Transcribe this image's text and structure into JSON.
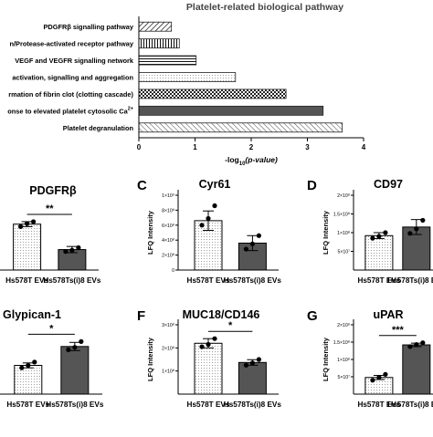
{
  "chart_data": [
    {
      "type": "bar",
      "orientation": "horizontal",
      "title": "Platelet-related biological pathway",
      "xlabel_parts": [
        "-log",
        "10",
        "(p-value)"
      ],
      "xlim": [
        0,
        4
      ],
      "ticks": [
        "0",
        "1",
        "2",
        "3",
        "4"
      ],
      "categories": [
        "PDGFRβ signalling pathway",
        "n/Protease-activated receptor pathway",
        "VEGF and VEGFR signalling network",
        "activation, signalling and aggregation",
        "rmation of fibrin clot (clotting cascade)",
        "onse to elevated platelet cytosolic Ca",
        "Platelet degranulation"
      ],
      "ca_superscript": "2+",
      "values": [
        0.58,
        0.72,
        1.02,
        1.72,
        2.62,
        3.28,
        3.62
      ]
    },
    {
      "type": "bar",
      "panel_letter": "",
      "title": "PDGFRβ",
      "ylabel": "",
      "ytick_labels": [],
      "categories": [
        "Hs578T EVs",
        "Hs578Ts(i)8 EVs"
      ],
      "means": [
        74,
        33
      ],
      "errors": [
        4,
        5
      ],
      "points": [
        [
          70,
          75,
          78
        ],
        [
          30,
          32,
          36
        ]
      ],
      "ylim": [
        0,
        100
      ],
      "significance": "**"
    },
    {
      "type": "bar",
      "panel_letter": "C",
      "title": "Cyr61",
      "ylabel": "LFQ Intensity",
      "ytick_labels": [
        "1×10⁹",
        "8×10⁸",
        "6×10⁸",
        "4×10⁸",
        "2×10⁸",
        "0"
      ],
      "yticks": [
        1000000000,
        800000000,
        600000000,
        400000000,
        200000000,
        0
      ],
      "categories": [
        "Hs578T EVs",
        "Hs578Ts(i)8 EVs"
      ],
      "means": [
        660000000,
        360000000
      ],
      "errors": [
        130000000,
        100000000
      ],
      "points": [
        [
          600000000,
          690000000,
          860000000
        ],
        [
          280000000,
          350000000,
          460000000
        ]
      ],
      "ylim": [
        0,
        1000000000
      ],
      "significance": ""
    },
    {
      "type": "bar",
      "panel_letter": "D",
      "title": "CD97",
      "ylabel": "LFQ Intensity",
      "ytick_labels": [
        "2×10⁸",
        "1.5×10⁸",
        "1×10⁸",
        "5×10⁷"
      ],
      "yticks": [
        200000000,
        150000000,
        100000000,
        50000000
      ],
      "categories": [
        "Hs578T EVs",
        "Hs578Ts(i)8 EVs"
      ],
      "means": [
        92000000,
        115000000
      ],
      "errors": [
        8000000,
        20000000
      ],
      "points": [
        [
          85000000,
          90000000,
          100000000
        ],
        [
          98000000,
          110000000,
          133000000
        ]
      ],
      "ylim": [
        0,
        200000000
      ],
      "significance": ""
    },
    {
      "type": "bar",
      "panel_letter": "",
      "title": "Glypican-1",
      "ylabel": "",
      "ytick_labels": [],
      "categories": [
        "Hs578T EVs",
        "Hs578Ts(i)8 EVs"
      ],
      "means": [
        35,
        58
      ],
      "errors": [
        3,
        5
      ],
      "points": [
        [
          32,
          35,
          39
        ],
        [
          54,
          57,
          64
        ]
      ],
      "ylim": [
        0,
        80
      ],
      "significance": "*"
    },
    {
      "type": "bar",
      "panel_letter": "F",
      "title": "MUC18/CD146",
      "ylabel": "LFQ Intensity",
      "ytick_labels": [
        "3×10⁸",
        "2×10⁸",
        "1×10⁸"
      ],
      "yticks": [
        300000000,
        200000000,
        100000000
      ],
      "categories": [
        "Hs578T EVs",
        "Hs578Ts(i)8 EVs"
      ],
      "means": [
        220000000,
        137000000
      ],
      "errors": [
        20000000,
        12000000
      ],
      "points": [
        [
          205000000,
          215000000,
          240000000
        ],
        [
          125000000,
          135000000,
          150000000
        ]
      ],
      "ylim": [
        0,
        300000000
      ],
      "significance": "*"
    },
    {
      "type": "bar",
      "panel_letter": "G",
      "title": "uPAR",
      "ylabel": "LFQ Intensity",
      "ytick_labels": [
        "2×10⁸",
        "1.5×10⁸",
        "1×10⁸",
        "5×10⁷"
      ],
      "yticks": [
        200000000,
        150000000,
        100000000,
        50000000
      ],
      "categories": [
        "Hs578T EVs",
        "Hs578Ts(i)8 EVs"
      ],
      "means": [
        48000000,
        142000000
      ],
      "errors": [
        6000000,
        5000000
      ],
      "points": [
        [
          40000000,
          48000000,
          57000000
        ],
        [
          137000000,
          143000000,
          148000000
        ]
      ],
      "ylim": [
        0,
        200000000
      ],
      "significance": "***"
    }
  ]
}
